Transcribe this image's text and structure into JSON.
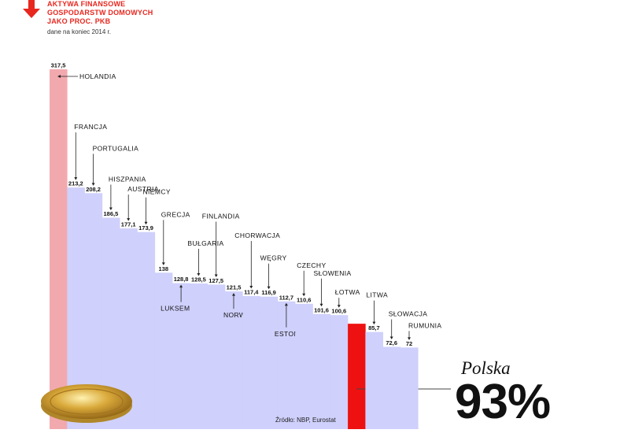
{
  "header": {
    "title_lines": [
      "AKTYWA FINANSOWE",
      "GOSPODARSTW DOMOWYCH",
      "JAKO PROC. PKB"
    ],
    "subtitle": "dane na koniec 2014 r."
  },
  "source": "Źródło: NBP, Eurostat",
  "highlight": {
    "name": "Polska",
    "value_label": "93%"
  },
  "colors": {
    "accent": "#e8271f",
    "bar": "#cfd0fb",
    "first_bar": "#f2a9ae",
    "highlight_bar": "#ee1111"
  },
  "icons": [
    "arrow-down-icon",
    "gold-coin-icon"
  ],
  "chart_data": {
    "type": "bar",
    "title": "AKTYWA FINANSOWE GOSPODARSTW DOMOWYCH JAKO PROC. PKB",
    "subtitle": "dane na koniec 2014 r.",
    "categories": [
      "HOLANDIA",
      "FRANCJA",
      "PORTUGALIA",
      "HISZPANIA",
      "AUSTRIA",
      "NIEMCY",
      "GRECJA",
      "LUKSEMBURG",
      "BUŁGARIA",
      "FINLANDIA",
      "NORWEGIA",
      "CHORWACJA",
      "WĘGRY",
      "ESTONIA",
      "CZECHY",
      "SŁOWENIA",
      "ŁOTWA",
      "Polska",
      "LITWA",
      "SŁOWACJA",
      "RUMUNIA"
    ],
    "values": [
      317.5,
      213.2,
      208.2,
      186.5,
      177.1,
      173.9,
      138,
      128.8,
      128.5,
      127.5,
      121.5,
      117.4,
      116.9,
      112.7,
      110.6,
      101.6,
      100.6,
      93,
      85.7,
      72.6,
      72
    ],
    "value_labels": [
      "317,5",
      "213,2",
      "208,2",
      "186,5",
      "177,1",
      "173,9",
      "138",
      "128,8",
      "128,5",
      "127,5",
      "121,5",
      "117,4",
      "116,9",
      "112,7",
      "110,6",
      "101,6",
      "100,6",
      "93%",
      "85,7",
      "72,6",
      "72"
    ],
    "highlight": "Polska",
    "ylim": [
      0,
      317.5
    ],
    "grid": false,
    "legend": "none"
  }
}
